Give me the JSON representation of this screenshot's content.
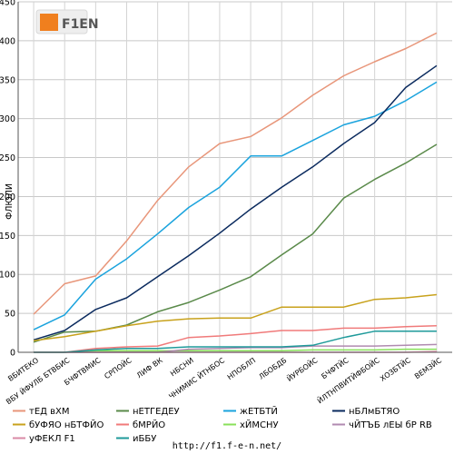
{
  "logo_text": "F1EN",
  "footer_url": "http://f1.f-e-n.net/",
  "chart_data": {
    "type": "line",
    "ylabel": "ФЛЮЛИ",
    "ylim": [
      0,
      450
    ],
    "yticks": [
      0,
      50,
      100,
      150,
      200,
      250,
      300,
      350,
      400,
      450
    ],
    "grid": true,
    "legend_position": "bottom",
    "categories": [
      "ВБИТЕКО",
      "ВБУ ЙФУЛБ БТВБИС",
      "БЧФТВМИС",
      "СРПОЙС",
      "ЛИФ ВК",
      "НБСНИ",
      "ЧНИМИС ЙТНБОС",
      "НПОБЛП",
      "ЛБОБДБ",
      "ЙУРБОЙС",
      "БЧФТЙС",
      "ЙЛТНПВИТЙФБОЙС",
      "ХОЗБТЙС",
      "ВЕМЗЙС"
    ],
    "series": [
      {
        "name": "тЕД вХМ",
        "color": "#e8967a",
        "values": [
          49,
          88,
          98,
          143,
          195,
          238,
          268,
          277,
          301,
          330,
          355,
          373,
          390,
          410
        ]
      },
      {
        "name": "нЕТГЕДЕУ",
        "color": "#5a8a4a",
        "values": [
          13,
          26,
          27,
          35,
          52,
          64,
          80,
          97,
          125,
          152,
          198,
          222,
          243,
          267
        ]
      },
      {
        "name": "жЕТБТЙ",
        "color": "#1aa3dd",
        "values": [
          29,
          48,
          94,
          120,
          152,
          186,
          212,
          252,
          252,
          272,
          292,
          303,
          323,
          347
        ]
      },
      {
        "name": "нБЛмБТЯО",
        "color": "#0a2a5e",
        "values": [
          16,
          28,
          55,
          70,
          97,
          124,
          153,
          184,
          212,
          238,
          268,
          295,
          340,
          368
        ]
      },
      {
        "name": "бУФЯО нБТФЙО",
        "color": "#c8a21c",
        "values": [
          15,
          20,
          27,
          34,
          40,
          43,
          44,
          44,
          58,
          58,
          58,
          68,
          70,
          74
        ]
      },
      {
        "name": "бМРЙО",
        "color": "#f07a7a",
        "values": [
          0,
          0,
          5,
          7,
          8,
          19,
          21,
          24,
          28,
          28,
          31,
          31,
          33,
          34
        ]
      },
      {
        "name": "хЙМСНУ",
        "color": "#88e05a",
        "values": [
          0,
          0,
          2,
          2,
          2,
          2,
          2,
          2,
          2,
          3,
          3,
          3,
          4,
          4
        ]
      },
      {
        "name": "чЙТЪБ лЕЫ бР RB",
        "color": "#b08ab0",
        "values": [
          0,
          0,
          0,
          0,
          0,
          4,
          5,
          6,
          6,
          8,
          8,
          8,
          9,
          10
        ]
      },
      {
        "name": "уФЕКЛ F1",
        "color": "#d98aa6",
        "values": [
          0,
          0,
          0,
          0,
          0,
          0,
          0,
          0,
          0,
          0,
          0,
          0,
          0,
          1
        ]
      },
      {
        "name": "иББУ",
        "color": "#1e9a9a",
        "values": [
          0,
          0,
          3,
          5,
          5,
          7,
          7,
          7,
          7,
          9,
          19,
          27,
          27,
          27
        ]
      }
    ]
  }
}
